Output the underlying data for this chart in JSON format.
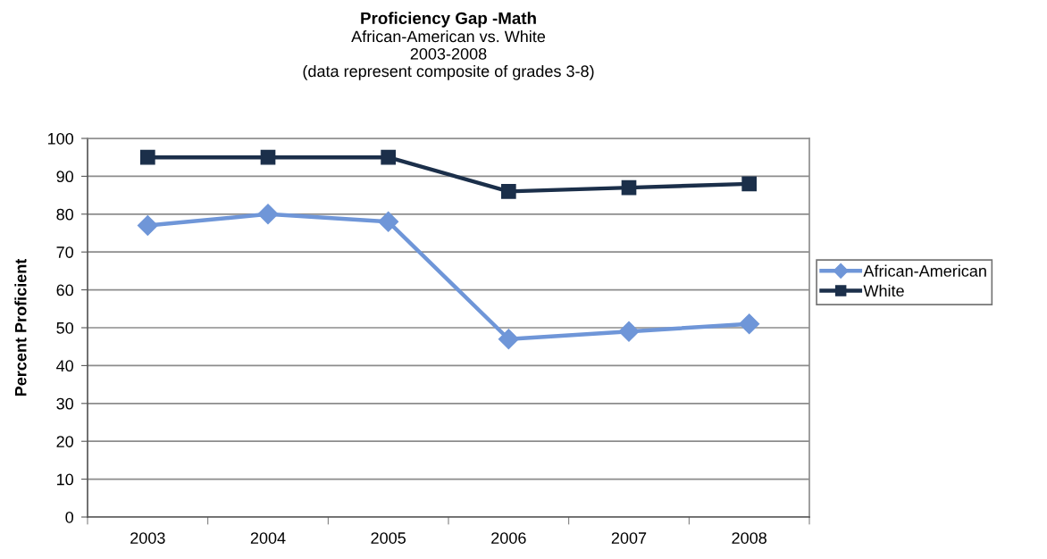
{
  "chart_data": {
    "type": "line",
    "title": "Proficiency Gap -Math",
    "subtitle": "African-American vs. White\n2003-2008\n(data represent composite of grades 3-8)",
    "ylabel": "Percent Proficient",
    "categories": [
      "2003",
      "2004",
      "2005",
      "2006",
      "2007",
      "2008"
    ],
    "series": [
      {
        "name": "African-American",
        "color": "#6f96d8",
        "marker": "diamond",
        "values": [
          77,
          80,
          78,
          47,
          49,
          51
        ]
      },
      {
        "name": "White",
        "color": "#1b2f4a",
        "marker": "square",
        "values": [
          95,
          95,
          95,
          86,
          87,
          88
        ]
      }
    ],
    "ylim": [
      0,
      100
    ],
    "yticks": [
      0,
      10,
      20,
      30,
      40,
      50,
      60,
      70,
      80,
      90,
      100
    ],
    "grid": "y",
    "legend": "right",
    "line_style": "solid"
  }
}
